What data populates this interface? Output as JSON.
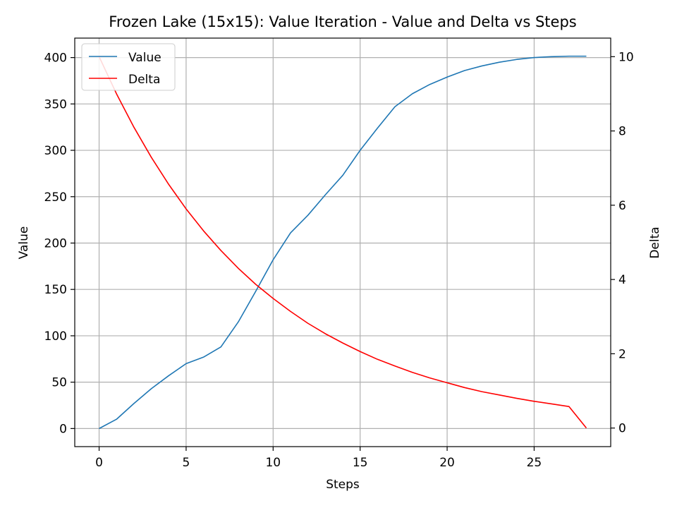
{
  "chart_data": {
    "type": "line",
    "title": "Frozen Lake (15x15): Value Iteration - Value and Delta vs Steps",
    "xlabel": "Steps",
    "ylabel": "Value",
    "y2label": "Delta",
    "xlim": [
      -1.4,
      29.4
    ],
    "ylim": [
      -19.5,
      421
    ],
    "y2lim": [
      -0.5,
      10.5
    ],
    "x_ticks": [
      0,
      5,
      10,
      15,
      20,
      25
    ],
    "y_ticks": [
      0,
      50,
      100,
      150,
      200,
      250,
      300,
      350,
      400
    ],
    "y2_ticks": [
      0,
      2,
      4,
      6,
      8,
      10
    ],
    "grid": true,
    "legend_position": "top-left",
    "colors": {
      "value": "#1f77b4",
      "delta": "#ff0000",
      "grid": "#b0b0b0"
    },
    "x": [
      0,
      1,
      2,
      3,
      4,
      5,
      6,
      7,
      8,
      9,
      10,
      11,
      12,
      13,
      14,
      15,
      16,
      17,
      18,
      19,
      20,
      21,
      22,
      23,
      24,
      25,
      26,
      27,
      28
    ],
    "series": [
      {
        "name": "Value",
        "axis": "left",
        "values": [
          0,
          10,
          27,
          43,
          57,
          70,
          77,
          88,
          115,
          148,
          182,
          211,
          230,
          252,
          273,
          300,
          324,
          347,
          361,
          371,
          379,
          386,
          391,
          395,
          398,
          400,
          401,
          401.5,
          401.5
        ]
      },
      {
        "name": "Delta",
        "axis": "right",
        "values": [
          10.0,
          9.0,
          8.1,
          7.29,
          6.56,
          5.9,
          5.31,
          4.78,
          4.3,
          3.87,
          3.49,
          3.14,
          2.82,
          2.54,
          2.29,
          2.06,
          1.85,
          1.67,
          1.5,
          1.35,
          1.22,
          1.09,
          0.98,
          0.89,
          0.8,
          0.72,
          0.65,
          0.58,
          0.0
        ]
      }
    ]
  }
}
